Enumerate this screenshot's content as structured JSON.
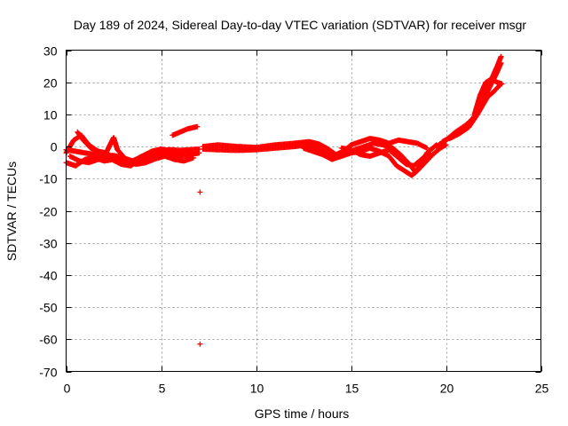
{
  "chart_data": {
    "type": "scatter",
    "title": "Day 189 of 2024, Sidereal Day-to-day VTEC variation (SDTVAR) for receiver msgr",
    "xlabel": "GPS time / hours",
    "ylabel": "SDTVAR / TECUs",
    "xlim": [
      0,
      25
    ],
    "ylim": [
      -70,
      30
    ],
    "xticks": [
      0,
      5,
      10,
      15,
      20,
      25
    ],
    "yticks": [
      -70,
      -60,
      -50,
      -40,
      -30,
      -20,
      -10,
      0,
      10,
      20,
      30
    ],
    "grid": true,
    "marker": "+",
    "color": "#ff0000",
    "series": [
      {
        "name": "SDTVAR",
        "tracks": [
          [
            [
              0.0,
              -2.0
            ],
            [
              0.4,
              2.0
            ],
            [
              0.8,
              3.5
            ],
            [
              1.2,
              0.5
            ],
            [
              1.8,
              -2.0
            ],
            [
              2.4,
              -4.0
            ],
            [
              2.9,
              -5.5
            ],
            [
              3.4,
              -6.0
            ],
            [
              3.9,
              -4.0
            ],
            [
              4.4,
              -2.5
            ],
            [
              4.9,
              -1.2
            ],
            [
              5.5,
              -1.0
            ],
            [
              6.0,
              -1.2
            ],
            [
              6.5,
              -1.0
            ],
            [
              7.0,
              -0.8
            ]
          ],
          [
            [
              0.0,
              -5.0
            ],
            [
              0.5,
              -6.0
            ],
            [
              1.0,
              -4.0
            ],
            [
              1.5,
              -3.5
            ],
            [
              2.0,
              -4.5
            ],
            [
              2.5,
              -4.0
            ],
            [
              3.0,
              -5.0
            ],
            [
              3.5,
              -5.5
            ],
            [
              4.0,
              -4.5
            ],
            [
              4.5,
              -3.0
            ],
            [
              5.0,
              -2.0
            ],
            [
              5.5,
              -2.5
            ],
            [
              6.0,
              -3.0
            ],
            [
              6.5,
              -2.5
            ],
            [
              7.0,
              -2.0
            ]
          ],
          [
            [
              0.0,
              -1.0
            ],
            [
              0.5,
              -1.5
            ],
            [
              1.0,
              -2.0
            ],
            [
              1.5,
              -2.5
            ],
            [
              2.0,
              -3.0
            ],
            [
              2.5,
              -2.8
            ],
            [
              3.0,
              -3.5
            ],
            [
              3.5,
              -4.5
            ],
            [
              4.0,
              -3.0
            ],
            [
              4.5,
              -1.5
            ],
            [
              5.0,
              -0.8
            ],
            [
              5.5,
              -1.5
            ],
            [
              6.0,
              -2.2
            ],
            [
              6.5,
              -2.0
            ]
          ],
          [
            [
              0.2,
              -3.0
            ],
            [
              0.7,
              -4.5
            ],
            [
              1.2,
              -5.0
            ],
            [
              1.7,
              -4.0
            ],
            [
              2.2,
              -2.5
            ],
            [
              2.7,
              -3.5
            ],
            [
              3.2,
              -4.8
            ],
            [
              3.7,
              -5.5
            ],
            [
              4.2,
              -5.0
            ],
            [
              4.7,
              -3.8
            ],
            [
              5.2,
              -3.0
            ],
            [
              5.7,
              -4.0
            ],
            [
              6.2,
              -4.5
            ],
            [
              6.7,
              -3.5
            ]
          ],
          [
            [
              0.6,
              4.5
            ],
            [
              0.9,
              2.0
            ],
            [
              1.3,
              -0.5
            ],
            [
              1.7,
              -1.5
            ],
            [
              2.1,
              -2.0
            ],
            [
              2.5,
              2.8
            ],
            [
              2.7,
              -1.0
            ],
            [
              3.0,
              -3.0
            ]
          ],
          [
            [
              7.2,
              0.0
            ],
            [
              8.0,
              0.5
            ],
            [
              9.0,
              0.0
            ],
            [
              10.0,
              -0.3
            ],
            [
              11.0,
              0.5
            ],
            [
              12.0,
              1.0
            ],
            [
              12.8,
              1.5
            ],
            [
              13.3,
              0.8
            ],
            [
              13.8,
              -0.8
            ],
            [
              14.2,
              -2.5
            ],
            [
              14.6,
              -1.5
            ],
            [
              15.0,
              0.5
            ],
            [
              15.5,
              1.5
            ],
            [
              16.0,
              2.5
            ],
            [
              16.5,
              2.0
            ],
            [
              17.0,
              1.0
            ],
            [
              17.5,
              2.0
            ],
            [
              18.0,
              1.5
            ],
            [
              18.5,
              1.0
            ],
            [
              19.0,
              -0.5
            ]
          ],
          [
            [
              7.2,
              -0.8
            ],
            [
              8.0,
              -1.0
            ],
            [
              9.0,
              -1.2
            ],
            [
              10.0,
              -1.0
            ],
            [
              11.0,
              -0.5
            ],
            [
              12.0,
              0.0
            ],
            [
              12.7,
              0.5
            ],
            [
              13.2,
              -0.5
            ],
            [
              13.7,
              -2.0
            ],
            [
              14.2,
              -3.5
            ],
            [
              14.7,
              -2.5
            ],
            [
              15.2,
              -1.0
            ],
            [
              15.7,
              0.0
            ],
            [
              16.2,
              1.0
            ],
            [
              16.7,
              0.5
            ],
            [
              17.2,
              -0.5
            ],
            [
              17.6,
              -2.5
            ],
            [
              18.0,
              -5.0
            ],
            [
              18.4,
              -8.0
            ],
            [
              18.7,
              -5.0
            ],
            [
              19.0,
              -2.0
            ],
            [
              19.5,
              0.5
            ]
          ],
          [
            [
              12.5,
              -0.5
            ],
            [
              13.0,
              -1.5
            ],
            [
              13.5,
              -2.5
            ],
            [
              14.0,
              -4.0
            ],
            [
              14.5,
              -3.0
            ],
            [
              15.0,
              -2.0
            ],
            [
              15.5,
              -1.5
            ],
            [
              16.0,
              -0.5
            ],
            [
              16.5,
              -1.5
            ],
            [
              17.0,
              -3.0
            ],
            [
              17.4,
              -6.0
            ],
            [
              17.8,
              -7.5
            ],
            [
              18.2,
              -9.0
            ],
            [
              18.5,
              -7.5
            ],
            [
              18.9,
              -5.0
            ],
            [
              19.3,
              -2.5
            ],
            [
              19.7,
              -0.5
            ],
            [
              20.0,
              0.5
            ]
          ],
          [
            [
              14.5,
              -0.5
            ],
            [
              15.0,
              -1.0
            ],
            [
              15.5,
              -2.5
            ],
            [
              16.0,
              -3.0
            ],
            [
              16.5,
              -2.0
            ],
            [
              17.0,
              -1.0
            ],
            [
              17.5,
              -3.5
            ],
            [
              17.9,
              -5.5
            ],
            [
              18.3,
              -6.0
            ],
            [
              18.7,
              -4.0
            ],
            [
              19.1,
              -2.0
            ]
          ],
          [
            [
              19.5,
              0.0
            ],
            [
              20.0,
              2.0
            ],
            [
              20.5,
              4.5
            ],
            [
              21.0,
              6.5
            ],
            [
              21.5,
              9.0
            ],
            [
              21.8,
              13.0
            ],
            [
              22.1,
              17.0
            ],
            [
              22.4,
              21.0
            ],
            [
              22.7,
              25.0
            ],
            [
              22.9,
              28.0
            ]
          ],
          [
            [
              19.8,
              1.5
            ],
            [
              20.3,
              3.0
            ],
            [
              20.8,
              5.0
            ],
            [
              21.3,
              8.0
            ],
            [
              21.7,
              11.0
            ],
            [
              22.0,
              15.0
            ],
            [
              22.3,
              18.5
            ],
            [
              22.6,
              22.0
            ],
            [
              22.9,
              26.0
            ]
          ],
          [
            [
              20.2,
              2.5
            ],
            [
              20.7,
              4.0
            ],
            [
              21.2,
              6.0
            ],
            [
              21.6,
              9.5
            ],
            [
              21.9,
              12.5
            ],
            [
              22.2,
              15.5
            ],
            [
              22.5,
              17.0
            ],
            [
              22.9,
              19.5
            ]
          ],
          [
            [
              21.5,
              10.0
            ],
            [
              21.8,
              16.0
            ],
            [
              22.1,
              20.0
            ],
            [
              22.4,
              21.0
            ],
            [
              22.7,
              20.0
            ],
            [
              22.95,
              19.5
            ]
          ],
          [
            [
              5.6,
              3.5
            ],
            [
              6.0,
              4.5
            ],
            [
              6.4,
              5.5
            ],
            [
              6.9,
              6.2
            ]
          ]
        ],
        "outliers": [
          [
            7.05,
            -14.2
          ],
          [
            7.05,
            -61.5
          ]
        ]
      }
    ]
  }
}
